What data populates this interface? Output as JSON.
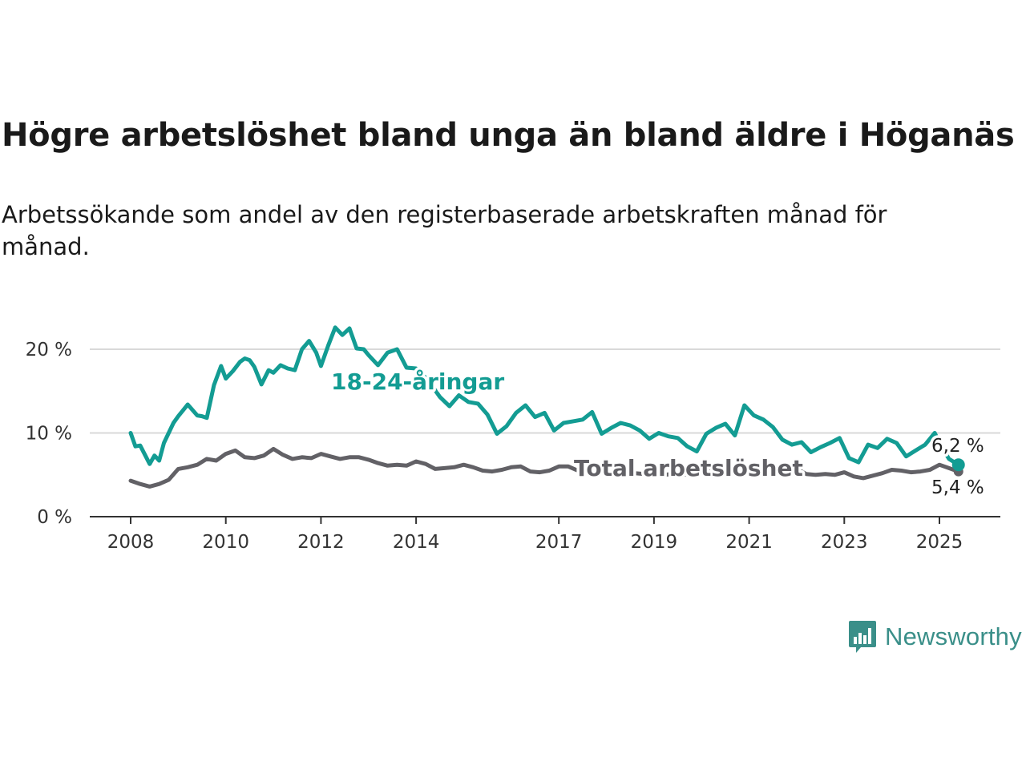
{
  "header": {
    "title": "Högre arbetslöshet bland unga än bland äldre i Höganäs",
    "subtitle": "Arbetssökande som andel av den registerbaserade arbetskraften månad för månad."
  },
  "brand": {
    "name": "Newsworthy",
    "icon": "newsworthy-logo-icon",
    "color": "#3a8f89"
  },
  "chart_data": {
    "type": "line",
    "title": "Högre arbetslöshet bland unga än bland äldre i Höganäs",
    "subtitle": "Arbetssökande som andel av den registerbaserade arbetskraften månad för månad.",
    "x_unit": "year",
    "xlim": [
      2008,
      2025.5
    ],
    "ylim": [
      0,
      22
    ],
    "y_ticks": [
      0,
      10,
      20
    ],
    "y_tick_labels": [
      "0 %",
      "10 %",
      "20 %"
    ],
    "x_ticks": [
      2008,
      2010,
      2012,
      2014,
      2017,
      2019,
      2021,
      2023,
      2025
    ],
    "x_tick_labels": [
      "2008",
      "2010",
      "2012",
      "2014",
      "2017",
      "2019",
      "2021",
      "2023",
      "2025"
    ],
    "grid": "horizontal",
    "series": [
      {
        "name": "18-24-åringar",
        "color": "#139c93",
        "end_label": "6,2 %",
        "x": [
          2008.0,
          2008.1,
          2008.2,
          2008.3,
          2008.4,
          2008.5,
          2008.6,
          2008.7,
          2008.9,
          2009.0,
          2009.2,
          2009.4,
          2009.5,
          2009.6,
          2009.75,
          2009.9,
          2010.0,
          2010.15,
          2010.3,
          2010.4,
          2010.5,
          2010.6,
          2010.75,
          2010.9,
          2011.0,
          2011.15,
          2011.3,
          2011.45,
          2011.6,
          2011.75,
          2011.9,
          2012.0,
          2012.15,
          2012.3,
          2012.45,
          2012.6,
          2012.75,
          2012.9,
          2013.0,
          2013.2,
          2013.4,
          2013.6,
          2013.8,
          2014.0,
          2014.2,
          2014.35,
          2014.5,
          2014.7,
          2014.9,
          2015.1,
          2015.3,
          2015.5,
          2015.7,
          2015.9,
          2016.1,
          2016.3,
          2016.5,
          2016.7,
          2016.9,
          2017.1,
          2017.3,
          2017.5,
          2017.7,
          2017.9,
          2018.1,
          2018.3,
          2018.5,
          2018.7,
          2018.9,
          2019.1,
          2019.3,
          2019.5,
          2019.7,
          2019.9,
          2020.1,
          2020.3,
          2020.5,
          2020.7,
          2020.9,
          2021.1,
          2021.3,
          2021.5,
          2021.7,
          2021.9,
          2022.1,
          2022.3,
          2022.5,
          2022.7,
          2022.9,
          2023.1,
          2023.3,
          2023.5,
          2023.7,
          2023.9,
          2024.1,
          2024.3,
          2024.5,
          2024.7,
          2024.9,
          2025.0,
          2025.2,
          2025.4
        ],
        "y": [
          10.0,
          8.4,
          8.5,
          7.4,
          6.3,
          7.3,
          6.7,
          8.8,
          11.2,
          12.0,
          13.4,
          12.1,
          12.0,
          11.8,
          15.7,
          18.0,
          16.5,
          17.4,
          18.5,
          18.9,
          18.7,
          17.9,
          15.8,
          17.5,
          17.2,
          18.1,
          17.7,
          17.5,
          20.0,
          21.0,
          19.6,
          18.0,
          20.4,
          22.6,
          21.7,
          22.5,
          20.1,
          20.0,
          19.3,
          18.1,
          19.6,
          20.0,
          17.8,
          17.7,
          16.6,
          15.5,
          14.3,
          13.2,
          14.5,
          13.7,
          13.5,
          12.2,
          9.9,
          10.8,
          12.4,
          13.3,
          11.9,
          12.4,
          10.3,
          11.2,
          11.4,
          11.6,
          12.5,
          9.9,
          10.6,
          11.2,
          10.9,
          10.3,
          9.3,
          10.0,
          9.6,
          9.4,
          8.4,
          7.8,
          9.9,
          10.6,
          11.1,
          9.7,
          13.3,
          12.1,
          11.6,
          10.7,
          9.2,
          8.6,
          8.9,
          7.7,
          8.3,
          8.8,
          9.4,
          7.0,
          6.5,
          8.6,
          8.2,
          9.3,
          8.8,
          7.2,
          7.9,
          8.6,
          10.0,
          8.8,
          6.9,
          6.2
        ]
      },
      {
        "name": "Total arbetslöshet",
        "color": "#626166",
        "end_label": "5,4 %",
        "x": [
          2008.0,
          2008.2,
          2008.4,
          2008.6,
          2008.8,
          2009.0,
          2009.2,
          2009.4,
          2009.6,
          2009.8,
          2010.0,
          2010.2,
          2010.4,
          2010.6,
          2010.8,
          2011.0,
          2011.2,
          2011.4,
          2011.6,
          2011.8,
          2012.0,
          2012.2,
          2012.4,
          2012.6,
          2012.8,
          2013.0,
          2013.2,
          2013.4,
          2013.6,
          2013.8,
          2014.0,
          2014.2,
          2014.4,
          2014.6,
          2014.8,
          2015.0,
          2015.2,
          2015.4,
          2015.6,
          2015.8,
          2016.0,
          2016.2,
          2016.4,
          2016.6,
          2016.8,
          2017.0,
          2017.2,
          2017.4,
          2017.6,
          2017.8,
          2018.0,
          2018.2,
          2018.4,
          2018.6,
          2018.8,
          2019.0,
          2019.2,
          2019.4,
          2019.6,
          2019.8,
          2020.0,
          2020.2,
          2020.4,
          2020.6,
          2020.8,
          2021.0,
          2021.2,
          2021.4,
          2021.6,
          2021.8,
          2022.0,
          2022.2,
          2022.4,
          2022.6,
          2022.8,
          2023.0,
          2023.2,
          2023.4,
          2023.6,
          2023.8,
          2024.0,
          2024.2,
          2024.4,
          2024.6,
          2024.8,
          2025.0,
          2025.2,
          2025.4
        ],
        "y": [
          4.3,
          3.9,
          3.6,
          3.9,
          4.4,
          5.7,
          5.9,
          6.2,
          6.9,
          6.7,
          7.5,
          7.9,
          7.1,
          7.0,
          7.3,
          8.1,
          7.4,
          6.9,
          7.1,
          7.0,
          7.5,
          7.2,
          6.9,
          7.1,
          7.1,
          6.8,
          6.4,
          6.1,
          6.2,
          6.1,
          6.6,
          6.3,
          5.7,
          5.8,
          5.9,
          6.2,
          5.9,
          5.5,
          5.4,
          5.6,
          5.9,
          6.0,
          5.4,
          5.3,
          5.5,
          6.0,
          6.0,
          5.5,
          5.4,
          5.3,
          5.2,
          5.3,
          5.2,
          5.2,
          5.1,
          5.2,
          5.0,
          5.1,
          5.0,
          5.1,
          5.6,
          5.8,
          5.6,
          5.7,
          5.6,
          5.9,
          5.6,
          5.5,
          5.5,
          5.6,
          5.7,
          5.1,
          5.0,
          5.1,
          5.0,
          5.3,
          4.8,
          4.6,
          4.9,
          5.2,
          5.6,
          5.5,
          5.3,
          5.4,
          5.6,
          6.2,
          5.8,
          5.4
        ]
      }
    ]
  }
}
